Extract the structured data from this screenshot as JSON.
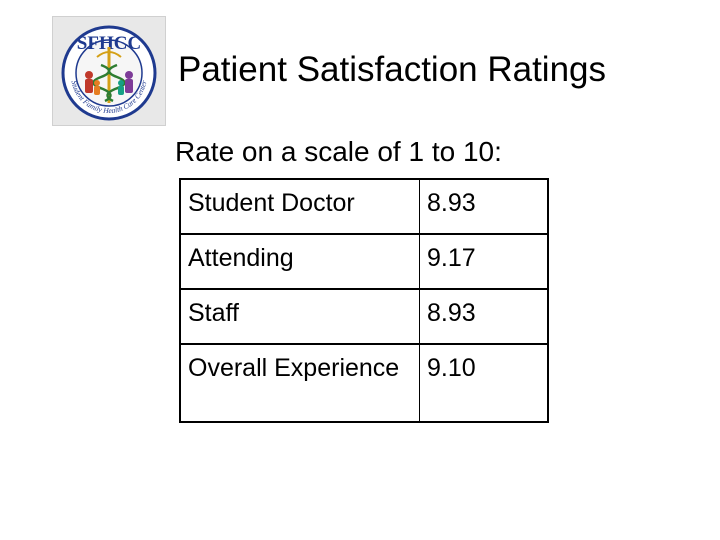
{
  "slide": {
    "title": "Patient Satisfaction Ratings",
    "subtitle": "Rate on a scale of 1 to 10:"
  },
  "logo": {
    "text": "SFHCC",
    "ring_text": "Student Family Health Care Center",
    "colors": {
      "ring": "#1f3a8f",
      "caduceus": "#d4a017",
      "figure_red": "#c0392b",
      "figure_purple": "#7d3c98"
    }
  },
  "ratings": [
    {
      "label": "Student Doctor",
      "value": "8.93"
    },
    {
      "label": "Attending",
      "value": "9.17"
    },
    {
      "label": "Staff",
      "value": "8.93"
    },
    {
      "label": "Overall Experience",
      "value": "9.10"
    }
  ]
}
